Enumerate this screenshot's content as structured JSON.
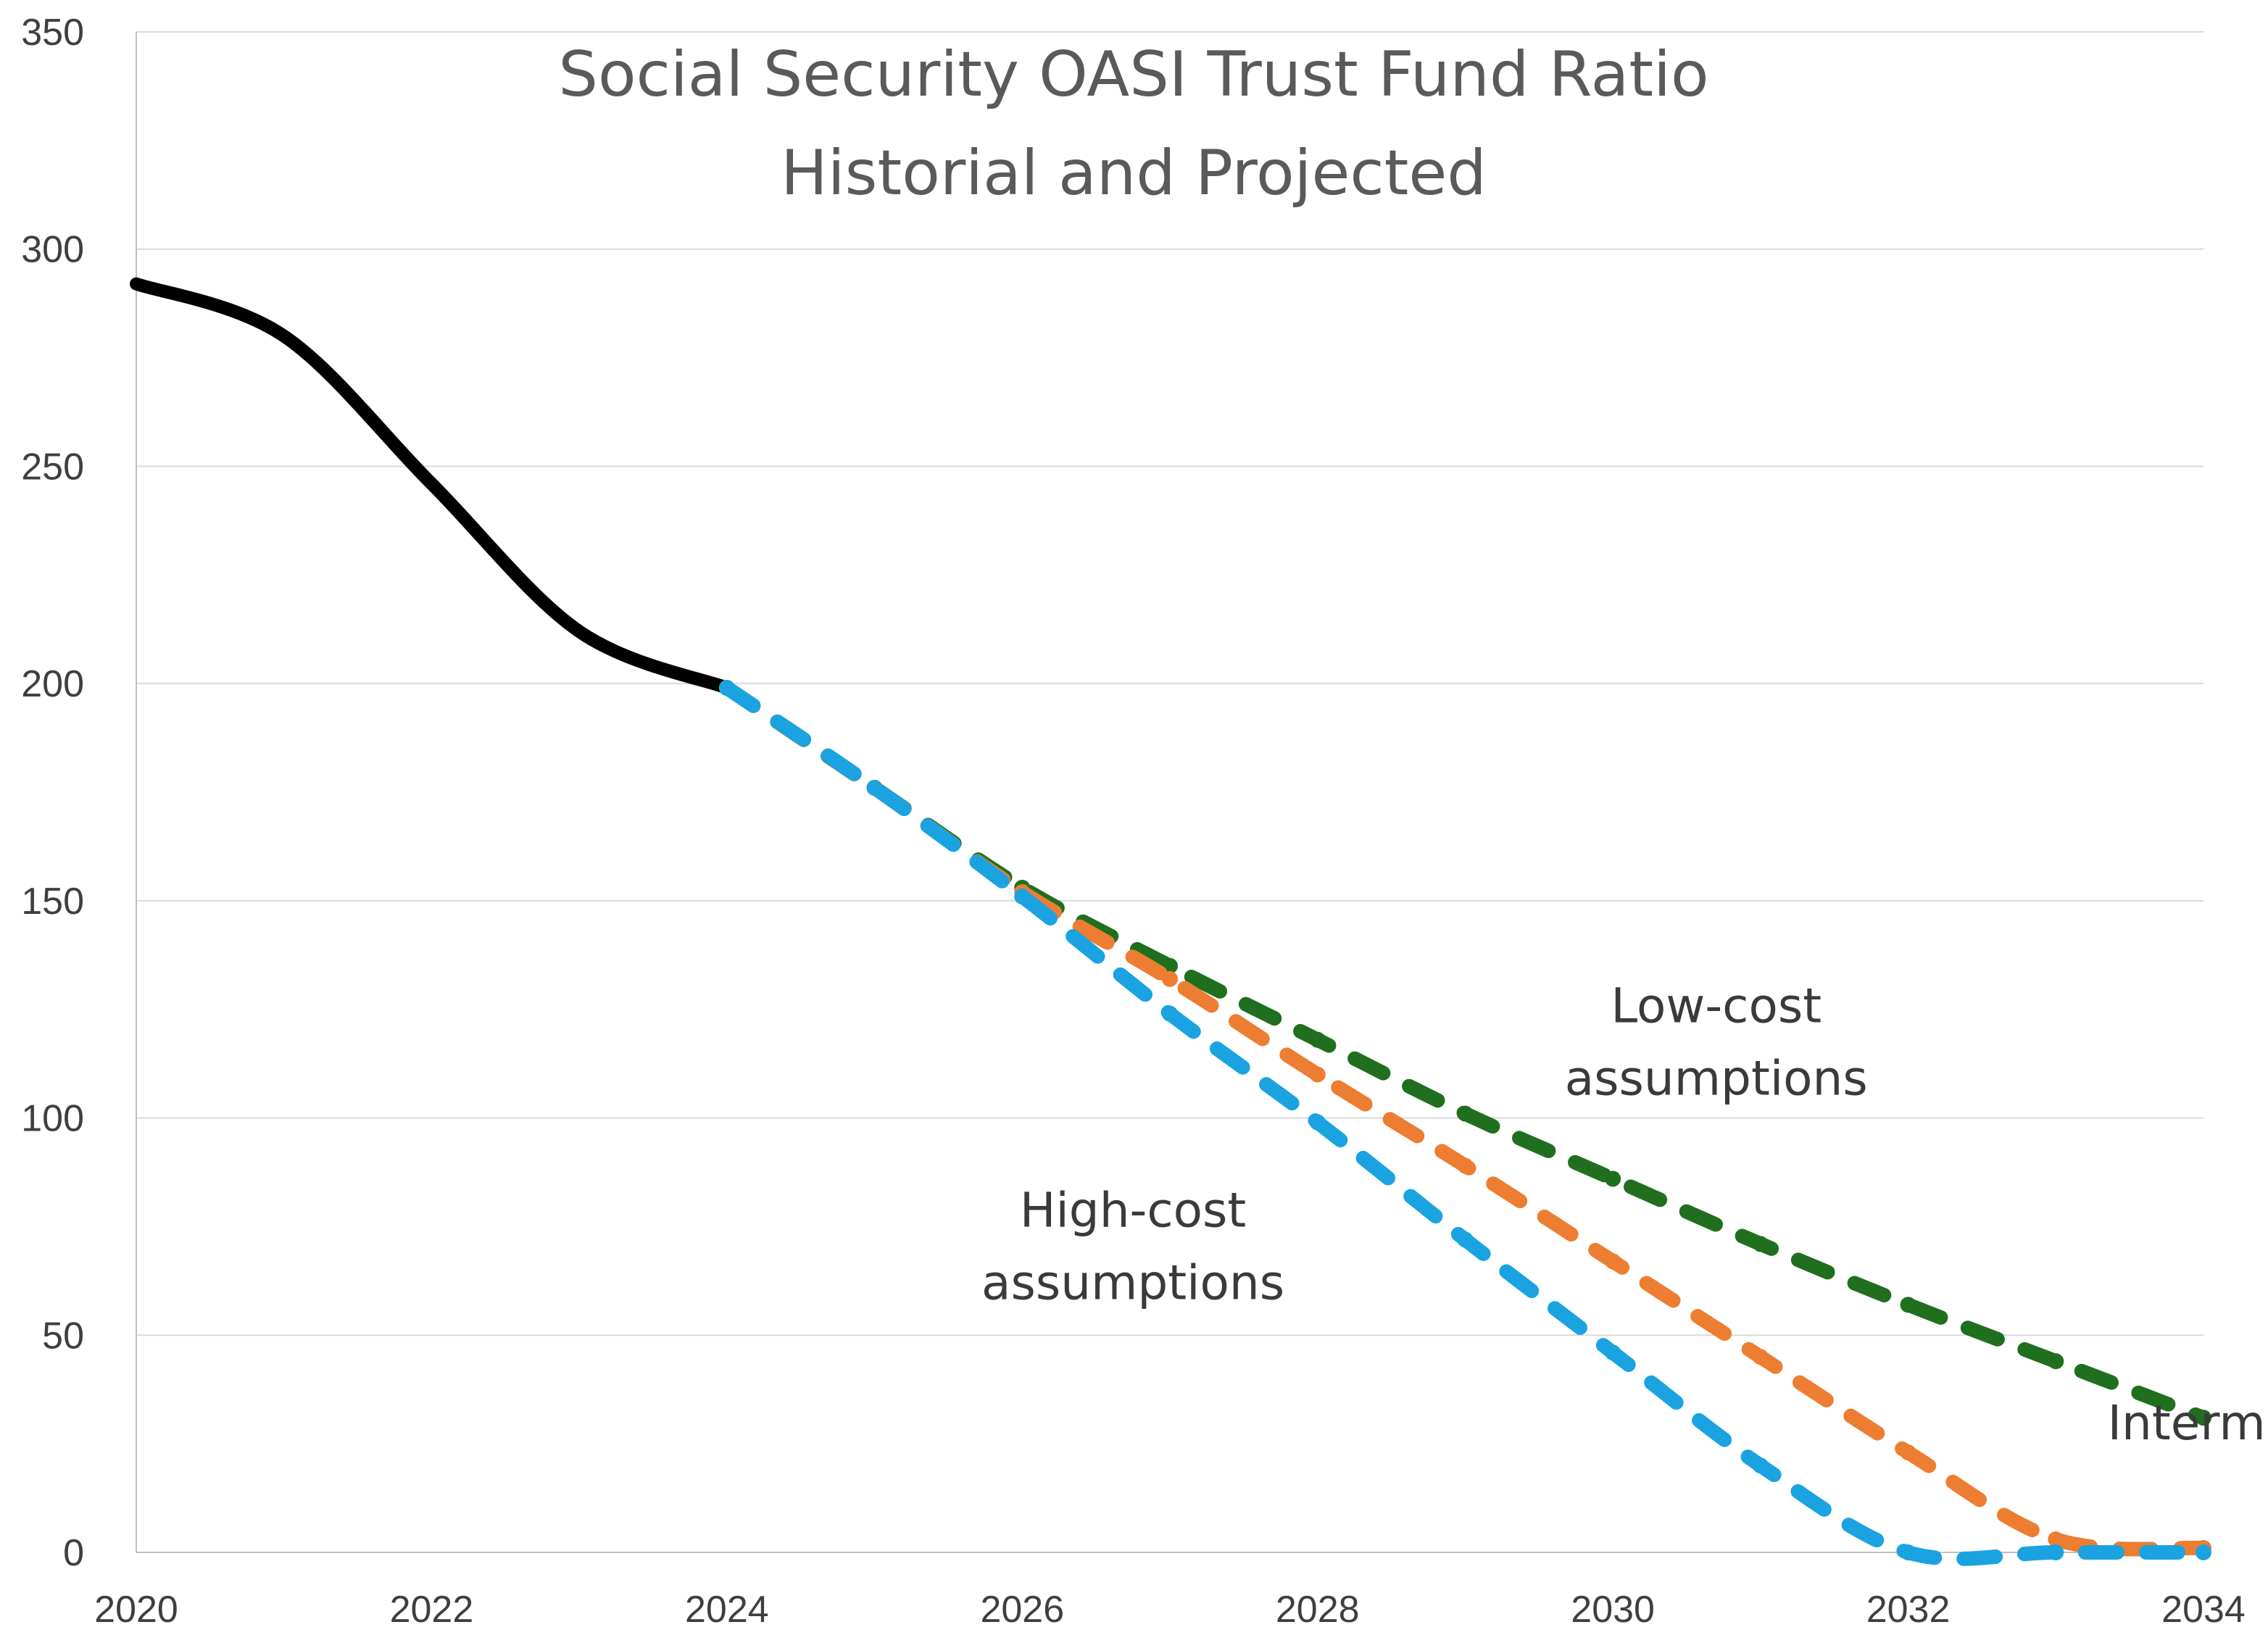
{
  "chart_data": {
    "type": "line",
    "title": "Social Security OASI Trust Fund Ratio",
    "subtitle": "Historial and Projected",
    "xlabel": "",
    "ylabel": "",
    "xlim": [
      2020,
      2034
    ],
    "ylim": [
      0,
      350
    ],
    "x_ticks": [
      "2020",
      "2022",
      "2024",
      "2026",
      "2028",
      "2030",
      "2032",
      "2034"
    ],
    "y_ticks": [
      "0",
      "50",
      "100",
      "150",
      "200",
      "250",
      "300",
      "350"
    ],
    "grid": "horizontal",
    "legend": "none",
    "series": [
      {
        "color": "#000000",
        "style": "solid",
        "x": [
          2020,
          2021,
          2022,
          2023,
          2024
        ],
        "y": [
          292,
          280,
          246,
          212,
          199
        ]
      },
      {
        "color": "#1f6f1f",
        "style": "dashed",
        "x": [
          2024,
          2025,
          2026,
          2027,
          2028,
          2029,
          2030,
          2031,
          2032,
          2033,
          2034
        ],
        "y": [
          199,
          176,
          153,
          135,
          118,
          101,
          86,
          71,
          57,
          44,
          31
        ]
      },
      {
        "color": "#ed7d31",
        "style": "dashed",
        "x": [
          2024,
          2025,
          2026,
          2027,
          2028,
          2029,
          2030,
          2031,
          2032,
          2033,
          2034
        ],
        "y": [
          199,
          176,
          152,
          132,
          110,
          89,
          67,
          45,
          23,
          3,
          1
        ]
      },
      {
        "color": "#1aa3e0",
        "style": "dashed",
        "x": [
          2024,
          2025,
          2026,
          2027,
          2028,
          2029,
          2030,
          2031,
          2032,
          2033,
          2034
        ],
        "y": [
          199,
          176,
          151,
          124,
          99,
          72,
          46,
          20,
          0,
          0,
          0
        ]
      }
    ],
    "annotations": [
      {
        "lines": [
          "Low-cost",
          "assumptions"
        ],
        "x": 2030.7,
        "y": 122,
        "color": "#3a3a3a"
      },
      {
        "lines": [
          "High-cost",
          "assumptions"
        ],
        "x": 2026.75,
        "y": 75,
        "color": "#3a3a3a"
      },
      {
        "lines": [
          "Intermediate"
        ],
        "x": 2033.35,
        "y": 26,
        "color": "#3a3a3a"
      }
    ]
  }
}
